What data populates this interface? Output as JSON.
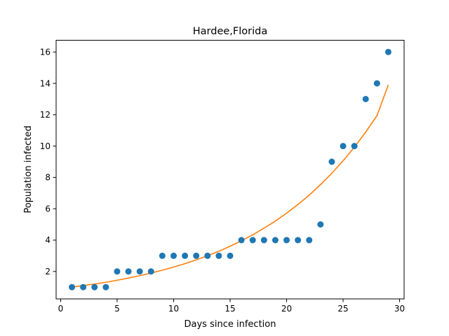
{
  "chart_data": {
    "type": "scatter",
    "title": "Hardee,Florida",
    "xlabel": "Days since infection",
    "ylabel": "Population infected",
    "xlim": [
      -0.4,
      30.4
    ],
    "ylim": [
      0.25,
      16.75
    ],
    "xticks": [
      0,
      5,
      10,
      15,
      20,
      25,
      30
    ],
    "yticks": [
      2,
      4,
      6,
      8,
      10,
      12,
      14,
      16
    ],
    "grid": false,
    "series": [
      {
        "kind": "scatter",
        "color": "#1f77b4",
        "x": [
          1,
          2,
          3,
          4,
          5,
          6,
          7,
          8,
          9,
          10,
          11,
          12,
          13,
          14,
          15,
          16,
          17,
          18,
          19,
          20,
          21,
          22,
          23,
          24,
          25,
          26,
          27,
          28,
          29
        ],
        "y": [
          1,
          1,
          1,
          1,
          2,
          2,
          2,
          2,
          3,
          3,
          3,
          3,
          3,
          3,
          3,
          4,
          4,
          4,
          4,
          4,
          4,
          4,
          5,
          9,
          10,
          10,
          13,
          14,
          16
        ]
      },
      {
        "kind": "line",
        "color": "#ff7f0e",
        "fit": "exponential",
        "x": [
          1,
          2,
          3,
          4,
          5,
          6,
          7,
          8,
          9,
          10,
          11,
          12,
          13,
          14,
          15,
          16,
          17,
          18,
          19,
          20,
          21,
          22,
          23,
          24,
          25,
          26,
          27,
          28,
          29
        ],
        "y": [
          1.0,
          1.1,
          1.2,
          1.31,
          1.44,
          1.58,
          1.73,
          1.9,
          2.08,
          2.28,
          2.5,
          2.74,
          3.0,
          3.29,
          3.61,
          3.96,
          4.34,
          4.76,
          5.21,
          5.72,
          6.27,
          6.87,
          7.54,
          8.26,
          9.06,
          9.93,
          10.89,
          11.94,
          13.9
        ]
      }
    ]
  }
}
